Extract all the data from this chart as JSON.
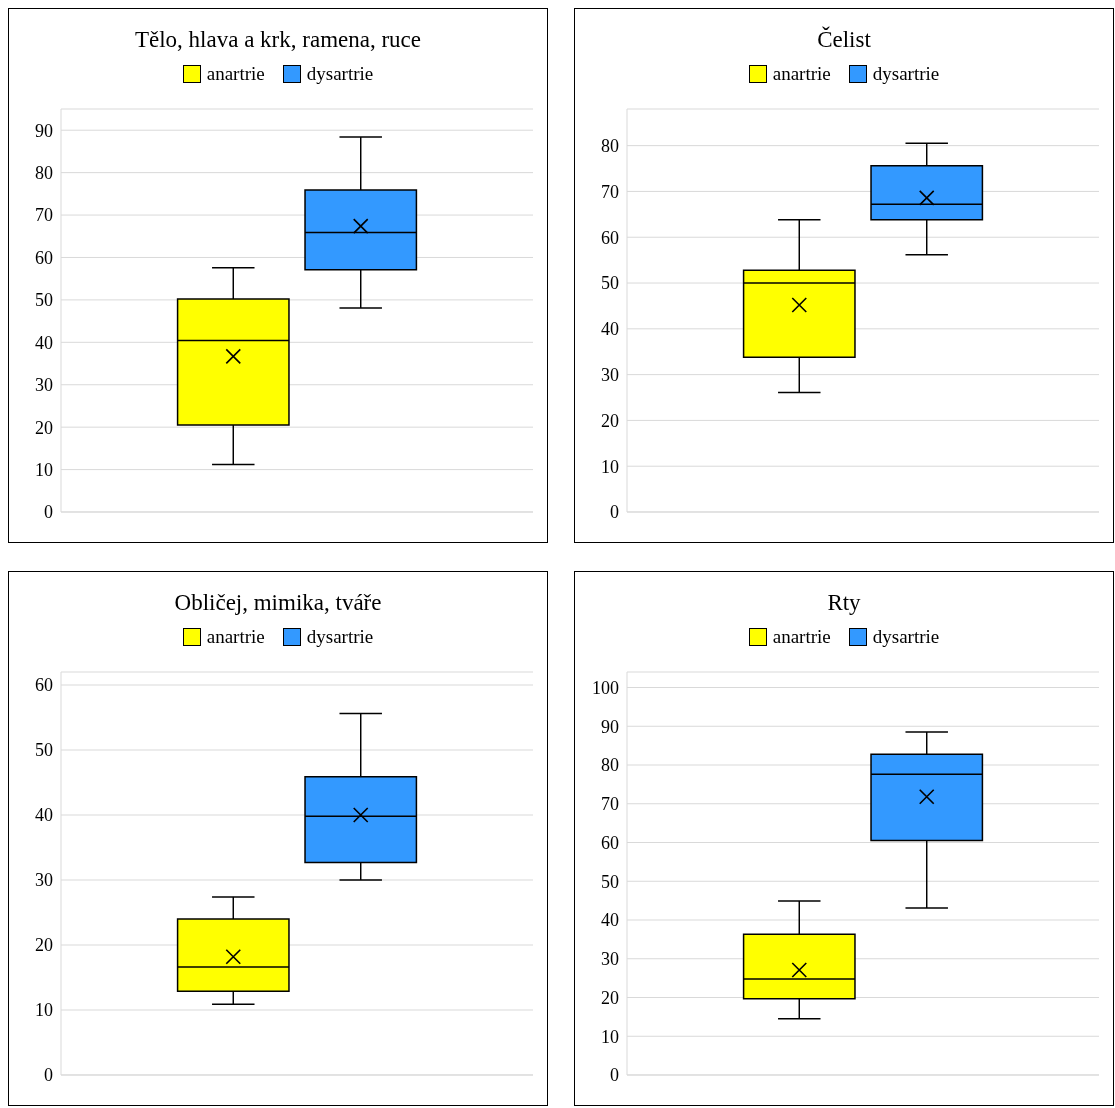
{
  "chart_data": [
    {
      "type": "box",
      "title": "Tělo, hlava a krk, ramena, ruce",
      "categories": [
        null
      ],
      "legend": "top",
      "grid": "y",
      "ylim": [
        0,
        95
      ],
      "yticks": [
        0,
        10,
        20,
        30,
        40,
        50,
        60,
        70,
        80,
        90
      ],
      "marker": "cross",
      "series": [
        {
          "name": "anartrie",
          "color": "#ffff00",
          "boxes": [
            {
              "low": 11.2,
              "q1": 20.5,
              "median": 40.4,
              "q3": 50.2,
              "high": 57.6,
              "mean": 36.7
            }
          ]
        },
        {
          "name": "dysartrie",
          "color": "#3399ff",
          "boxes": [
            {
              "low": 48.1,
              "q1": 57.1,
              "median": 65.9,
              "q3": 75.9,
              "high": 88.4,
              "mean": 67.4
            }
          ]
        }
      ]
    },
    {
      "type": "box",
      "title": "Čelist",
      "categories": [
        null
      ],
      "legend": "top",
      "grid": "y",
      "ylim": [
        0,
        88
      ],
      "yticks": [
        0,
        10,
        20,
        30,
        40,
        50,
        60,
        70,
        80
      ],
      "marker": "cross",
      "series": [
        {
          "name": "anartrie",
          "color": "#ffff00",
          "boxes": [
            {
              "low": 26.1,
              "q1": 33.8,
              "median": 50.0,
              "q3": 52.8,
              "high": 63.8,
              "mean": 45.2
            }
          ]
        },
        {
          "name": "dysartrie",
          "color": "#3399ff",
          "boxes": [
            {
              "low": 56.2,
              "q1": 63.8,
              "median": 67.2,
              "q3": 75.6,
              "high": 80.5,
              "mean": 68.6
            }
          ]
        }
      ]
    },
    {
      "type": "box",
      "title": "Obličej, mimika, tváře",
      "categories": [
        null
      ],
      "legend": "top",
      "grid": "y",
      "ylim": [
        0,
        62
      ],
      "yticks": [
        0,
        10,
        20,
        30,
        40,
        50,
        60
      ],
      "marker": "cross",
      "series": [
        {
          "name": "anartrie",
          "color": "#ffff00",
          "boxes": [
            {
              "low": 10.9,
              "q1": 12.9,
              "median": 16.6,
              "q3": 24.0,
              "high": 27.4,
              "mean": 18.2
            }
          ]
        },
        {
          "name": "dysartrie",
          "color": "#3399ff",
          "boxes": [
            {
              "low": 30.0,
              "q1": 32.7,
              "median": 39.8,
              "q3": 45.9,
              "high": 55.6,
              "mean": 40.0
            }
          ]
        }
      ]
    },
    {
      "type": "box",
      "title": "Rty",
      "categories": [
        null
      ],
      "legend": "top",
      "grid": "y",
      "ylim": [
        0,
        104
      ],
      "yticks": [
        0,
        10,
        20,
        30,
        40,
        50,
        60,
        70,
        80,
        90,
        100
      ],
      "marker": "cross",
      "series": [
        {
          "name": "anartrie",
          "color": "#ffff00",
          "boxes": [
            {
              "low": 14.5,
              "q1": 19.7,
              "median": 24.8,
              "q3": 36.3,
              "high": 44.9,
              "mean": 27.1
            }
          ]
        },
        {
          "name": "dysartrie",
          "color": "#3399ff",
          "boxes": [
            {
              "low": 43.1,
              "q1": 60.5,
              "median": 77.6,
              "q3": 82.8,
              "high": 88.5,
              "mean": 71.8
            }
          ]
        }
      ]
    }
  ]
}
